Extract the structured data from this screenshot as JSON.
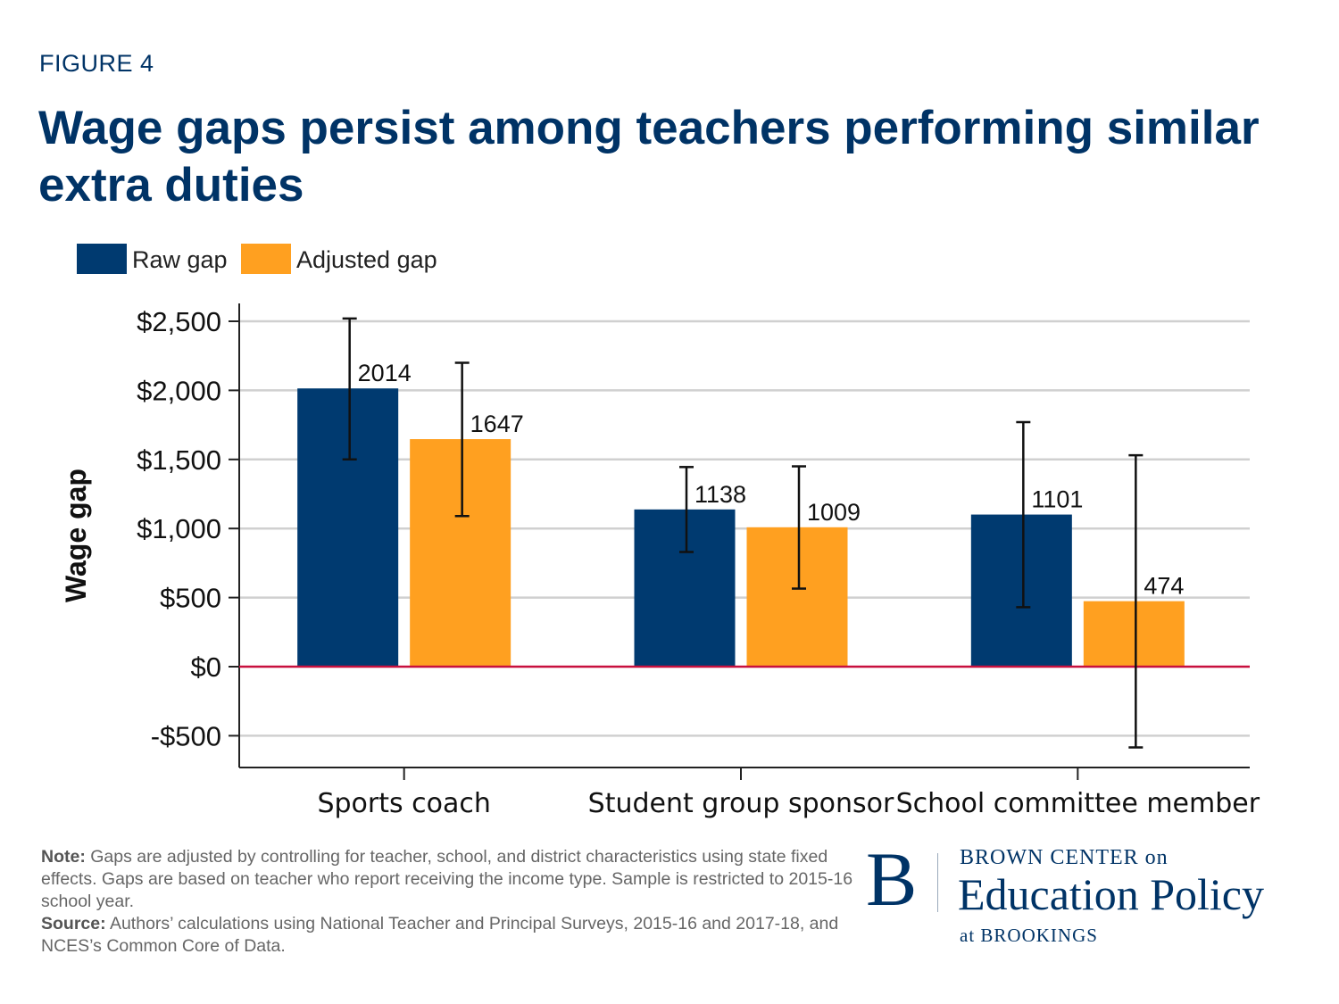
{
  "header": {
    "figure_label": "FIGURE 4",
    "title": "Wage gaps persist among teachers performing similar extra duties"
  },
  "colors": {
    "raw": "#003a70",
    "adjusted": "#ffa020",
    "zero_line": "#c8103e",
    "grid": "#d0d0d0",
    "brand": "#003366"
  },
  "chart_data": {
    "type": "bar",
    "title": "",
    "xlabel": "",
    "ylabel": "Wage gap",
    "ylim": [
      -730,
      2650
    ],
    "yticks": [
      -500,
      0,
      500,
      1000,
      1500,
      2000,
      2500
    ],
    "ytick_labels": [
      "-$500",
      "$0",
      "$500",
      "$1,000",
      "$1,500",
      "$2,000",
      "$2,500"
    ],
    "grid": true,
    "legend_position": "top-left",
    "categories": [
      "Sports coach",
      "Student group sponsor",
      "School committee member"
    ],
    "series": [
      {
        "name": "Raw gap",
        "values": [
          2014,
          1138,
          1101
        ],
        "value_labels": [
          "2014",
          "1138",
          "1101"
        ],
        "ci_low": [
          1500,
          830,
          430
        ],
        "ci_high": [
          2520,
          1445,
          1770
        ]
      },
      {
        "name": "Adjusted gap",
        "values": [
          1647,
          1009,
          474
        ],
        "value_labels": [
          "1647",
          "1009",
          "474"
        ],
        "ci_low": [
          1090,
          565,
          -585
        ],
        "ci_high": [
          2200,
          1450,
          1530
        ]
      }
    ]
  },
  "notes": {
    "note_label": "Note:",
    "note_text": " Gaps are adjusted by controlling for teacher, school, and district characteristics using state fixed effects. Gaps are based on teacher who report receiving the income type. Sample is restricted to 2015-16 school year.",
    "source_label": "Source:",
    "source_text": " Authors’ calculations using National Teacher and Principal Surveys, 2015-16 and 2017-18, and NCES’s Common Core of Data."
  },
  "logo": {
    "letter": "B",
    "line1": "BROWN CENTER on",
    "line2": "Education Policy",
    "line3": "at BROOKINGS"
  }
}
